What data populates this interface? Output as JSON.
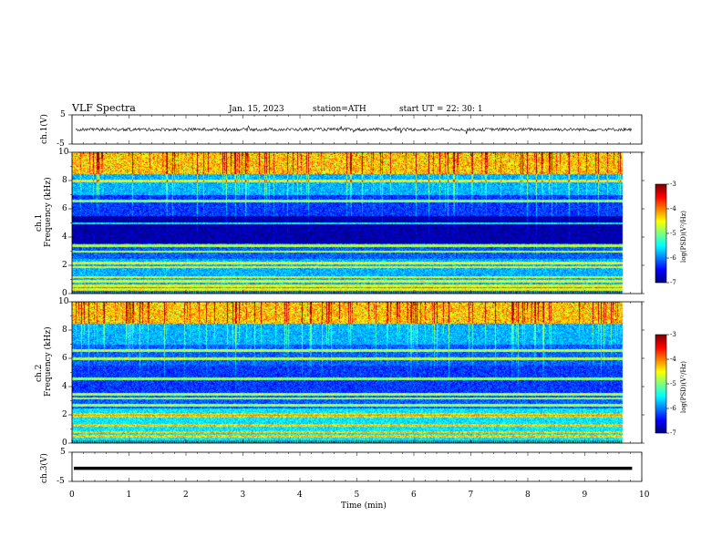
{
  "header": {
    "title": "VLF  Spectra",
    "date": "Jan. 15, 2023",
    "station": "station=ATH",
    "start": "start  UT  =   22: 30: 1"
  },
  "chart_data": [
    {
      "type": "line",
      "panel": "ch1-waveform",
      "ylabel": "ch.1(V)",
      "ylim": [
        -5,
        5
      ],
      "y_ticks": [
        "5",
        "-5"
      ],
      "xlim": [
        0,
        10
      ],
      "series_color": "#000000",
      "description_values": {
        "baseline": 0,
        "typical_amplitude": 0.6
      }
    },
    {
      "type": "heatmap",
      "panel": "ch1-spectrogram",
      "ylabel": "ch.1\nFrequency (kHz)",
      "ylim": [
        0,
        10
      ],
      "y_ticks": [
        "0",
        "2",
        "4",
        "6",
        "8",
        "10"
      ],
      "xlim": [
        0,
        10
      ],
      "data_end_min": 9.83,
      "colorbar": {
        "label": "log(PSD)(V²/Hz)",
        "ticks": [
          "-3",
          "-4",
          "-5",
          "-6",
          "-7"
        ],
        "range": [
          -7,
          -3
        ]
      },
      "bands_khz": [
        0.3,
        0.6,
        0.9,
        1.2,
        1.9,
        2.2,
        3.0,
        3.4,
        5.0,
        6.6,
        8.0
      ]
    },
    {
      "type": "heatmap",
      "panel": "ch2-spectrogram",
      "ylabel": "ch.2\nFrequency (kHz)",
      "ylim": [
        0,
        10
      ],
      "y_ticks": [
        "0",
        "2",
        "4",
        "6",
        "8",
        "10"
      ],
      "xlim": [
        0,
        10
      ],
      "data_end_min": 9.83,
      "colorbar": {
        "label": "log(PSD)(V²/Hz)",
        "ticks": [
          "-3",
          "-4",
          "-5",
          "-6",
          "-7"
        ],
        "range": [
          -7,
          -3
        ]
      },
      "bands_khz": [
        0.5,
        0.8,
        1.3,
        1.9,
        2.1,
        2.7,
        3.2,
        3.5,
        4.6,
        6.0,
        6.6
      ]
    },
    {
      "type": "line",
      "panel": "ch3-waveform",
      "ylabel": "ch.3(V)",
      "ylim": [
        -5,
        5
      ],
      "y_ticks": [
        "5",
        "-5"
      ],
      "xlim": [
        0,
        10
      ],
      "series_color": "#000000",
      "description_values": {
        "baseline": -0.5
      }
    }
  ],
  "x_axis": {
    "label": "Time  (min)",
    "ticks": [
      "0",
      "1",
      "2",
      "3",
      "4",
      "5",
      "6",
      "7",
      "8",
      "9",
      "10"
    ]
  }
}
